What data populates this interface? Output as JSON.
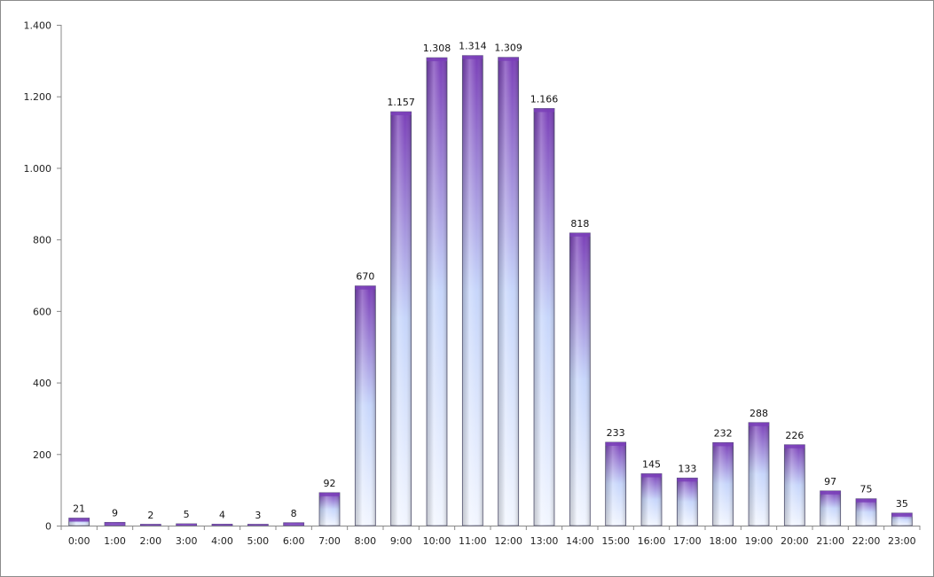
{
  "chart_data": {
    "type": "bar",
    "title": "",
    "xlabel": "",
    "ylabel": "",
    "ylim": [
      0,
      1400
    ],
    "yticks": [
      0,
      200,
      400,
      600,
      800,
      1000,
      1200,
      1400
    ],
    "ytick_labels": [
      "0",
      "200",
      "400",
      "600",
      "800",
      "1.000",
      "1.200",
      "1.400"
    ],
    "grid": false,
    "legend": "none",
    "categories": [
      "0:00",
      "1:00",
      "2:00",
      "3:00",
      "4:00",
      "5:00",
      "6:00",
      "7:00",
      "8:00",
      "9:00",
      "10:00",
      "11:00",
      "12:00",
      "13:00",
      "14:00",
      "15:00",
      "16:00",
      "17:00",
      "18:00",
      "19:00",
      "20:00",
      "21:00",
      "22:00",
      "23:00"
    ],
    "values": [
      21,
      9,
      2,
      5,
      4,
      3,
      8,
      92,
      670,
      1157,
      1308,
      1314,
      1309,
      1166,
      818,
      233,
      145,
      133,
      232,
      288,
      226,
      97,
      75,
      35
    ],
    "value_labels": [
      "21",
      "9",
      "2",
      "5",
      "4",
      "3",
      "8",
      "92",
      "670",
      "1.157",
      "1.308",
      "1.314",
      "1.309",
      "1.166",
      "818",
      "233",
      "145",
      "133",
      "232",
      "288",
      "226",
      "97",
      "75",
      "35"
    ],
    "colors": {
      "bar_top": "#7a3fb8",
      "bar_bottom": "#e8f0ff",
      "bar_outline": "#5a5a78",
      "axis": "#888888"
    }
  }
}
